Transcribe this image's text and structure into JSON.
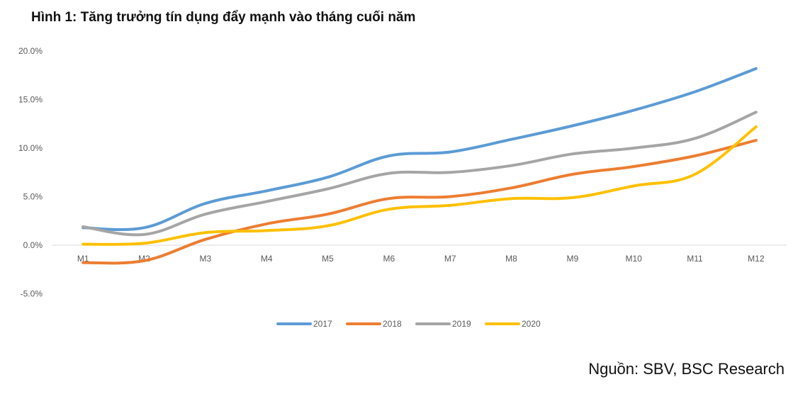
{
  "title": "Hình 1: Tăng trưởng tín dụng đẩy mạnh vào tháng cuối năm",
  "source": "Nguồn: SBV, BSC Research",
  "chart_data": {
    "type": "line",
    "title": "Hình 1: Tăng trưởng tín dụng đẩy mạnh vào tháng cuối năm",
    "categories": [
      "M1",
      "M2",
      "M3",
      "M4",
      "M5",
      "M6",
      "M7",
      "M8",
      "M9",
      "M10",
      "M11",
      "M12"
    ],
    "y_ticks": [
      "20.0%",
      "15.0%",
      "10.0%",
      "5.0%",
      "0.0%",
      "-5.0%"
    ],
    "ylim": [
      -5,
      20
    ],
    "y_unit": "%",
    "grid": false,
    "legend_position": "bottom",
    "series": [
      {
        "name": "2017",
        "color": "#5B9BD5",
        "values": [
          1.8,
          1.8,
          4.3,
          5.6,
          7.0,
          9.2,
          9.6,
          10.9,
          12.3,
          13.9,
          15.8,
          18.2
        ]
      },
      {
        "name": "2018",
        "color": "#ED7D31",
        "values": [
          -1.8,
          -1.6,
          0.6,
          2.2,
          3.2,
          4.8,
          5.0,
          5.9,
          7.3,
          8.1,
          9.2,
          10.8
        ]
      },
      {
        "name": "2019",
        "color": "#A5A5A5",
        "values": [
          1.9,
          1.1,
          3.2,
          4.5,
          5.8,
          7.4,
          7.5,
          8.2,
          9.4,
          10.0,
          11.0,
          13.7
        ]
      },
      {
        "name": "2020",
        "color": "#FFC000",
        "values": [
          0.1,
          0.2,
          1.3,
          1.5,
          2.0,
          3.7,
          4.1,
          4.8,
          4.9,
          6.1,
          7.3,
          12.2
        ]
      }
    ]
  }
}
